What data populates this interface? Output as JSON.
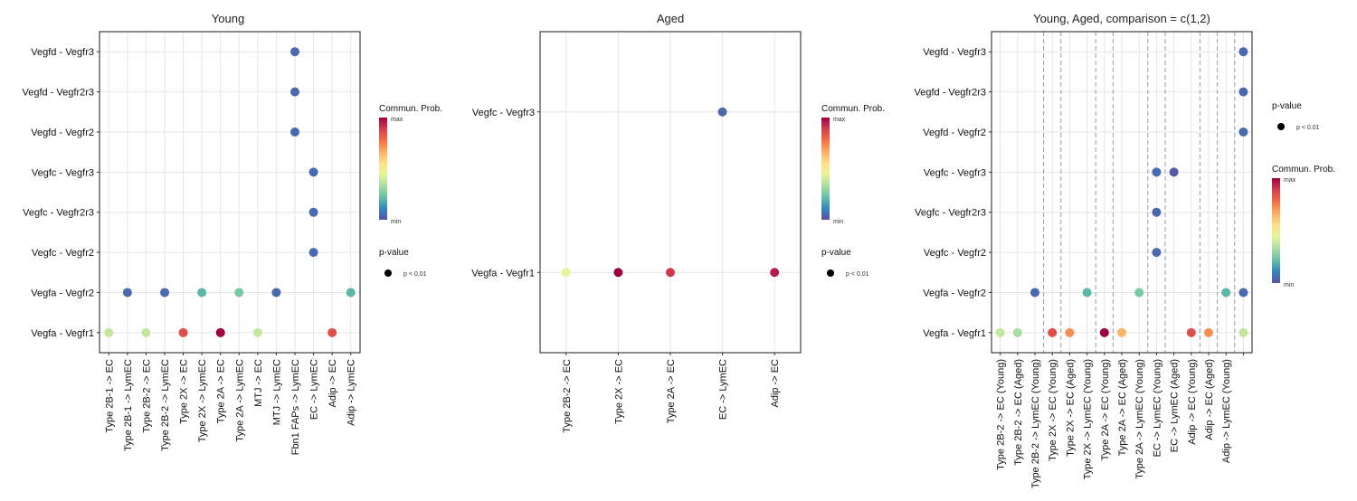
{
  "chart_data": [
    {
      "type": "scatter",
      "title": "Young",
      "x_categories": [
        "Type 2B-1 -> EC",
        "Type 2B-1 -> LymEC",
        "Type 2B-2 -> EC",
        "Type 2B-2 -> LymEC",
        "Type 2X -> EC",
        "Type 2X -> LymEC",
        "Type 2A -> EC",
        "Type 2A -> LymEC",
        "MTJ -> EC",
        "MTJ -> LymEC",
        "Fbn1 FAPs -> LymEC",
        "EC -> LymEC",
        "Adip -> EC",
        "Adip -> LymEC"
      ],
      "y_categories": [
        "Vegfa  - Vegfr1",
        "Vegfa  - Vegfr2",
        "Vegfc  - Vegfr2",
        "Vegfc  - Vegfr2r3",
        "Vegfc  - Vegfr3",
        "Vegfd  - Vegfr2",
        "Vegfd  - Vegfr2r3",
        "Vegfd  - Vegfr3"
      ],
      "points": [
        {
          "x": "Type 2B-1 -> EC",
          "y": "Vegfa  - Vegfr1",
          "prob": 0.38
        },
        {
          "x": "Type 2B-2 -> EC",
          "y": "Vegfa  - Vegfr1",
          "prob": 0.38
        },
        {
          "x": "Type 2X -> EC",
          "y": "Vegfa  - Vegfr1",
          "prob": 0.85
        },
        {
          "x": "Type 2A -> EC",
          "y": "Vegfa  - Vegfr1",
          "prob": 1.0
        },
        {
          "x": "MTJ -> EC",
          "y": "Vegfa  - Vegfr1",
          "prob": 0.38
        },
        {
          "x": "Adip -> EC",
          "y": "Vegfa  - Vegfr1",
          "prob": 0.85
        },
        {
          "x": "Type 2B-1 -> LymEC",
          "y": "Vegfa  - Vegfr2",
          "prob": 0.05
        },
        {
          "x": "Type 2B-2 -> LymEC",
          "y": "Vegfa  - Vegfr2",
          "prob": 0.05
        },
        {
          "x": "Type 2X -> LymEC",
          "y": "Vegfa  - Vegfr2",
          "prob": 0.2
        },
        {
          "x": "Type 2A -> LymEC",
          "y": "Vegfa  - Vegfr2",
          "prob": 0.25
        },
        {
          "x": "MTJ -> LymEC",
          "y": "Vegfa  - Vegfr2",
          "prob": 0.05
        },
        {
          "x": "Adip -> LymEC",
          "y": "Vegfa  - Vegfr2",
          "prob": 0.2
        },
        {
          "x": "EC -> LymEC",
          "y": "Vegfc  - Vegfr2",
          "prob": 0.05
        },
        {
          "x": "EC -> LymEC",
          "y": "Vegfc  - Vegfr2r3",
          "prob": 0.05
        },
        {
          "x": "EC -> LymEC",
          "y": "Vegfc  - Vegfr3",
          "prob": 0.05
        },
        {
          "x": "Fbn1 FAPs -> LymEC",
          "y": "Vegfd  - Vegfr2",
          "prob": 0.05
        },
        {
          "x": "Fbn1 FAPs -> LymEC",
          "y": "Vegfd  - Vegfr2r3",
          "prob": 0.05
        },
        {
          "x": "Fbn1 FAPs -> LymEC",
          "y": "Vegfd  - Vegfr3",
          "prob": 0.05
        }
      ],
      "legend": {
        "color_title": "Commun. Prob.",
        "color_max": "max",
        "color_min": "min",
        "size_title": "p-value",
        "size_label": "p < 0.01"
      }
    },
    {
      "type": "scatter",
      "title": "Aged",
      "x_categories": [
        "Type 2B-2 -> EC",
        "Type 2X -> EC",
        "Type 2A -> EC",
        "EC -> LymEC",
        "Adip -> EC"
      ],
      "y_categories": [
        "Vegfa  - Vegfr1",
        "Vegfc  - Vegfr3"
      ],
      "points": [
        {
          "x": "Type 2B-2 -> EC",
          "y": "Vegfa  - Vegfr1",
          "prob": 0.45
        },
        {
          "x": "Type 2X -> EC",
          "y": "Vegfa  - Vegfr1",
          "prob": 1.0
        },
        {
          "x": "Type 2A -> EC",
          "y": "Vegfa  - Vegfr1",
          "prob": 0.9
        },
        {
          "x": "Adip -> EC",
          "y": "Vegfa  - Vegfr1",
          "prob": 0.95
        },
        {
          "x": "EC -> LymEC",
          "y": "Vegfc  - Vegfr3",
          "prob": 0.05
        }
      ],
      "legend": {
        "color_title": "Commun. Prob.",
        "color_max": "max",
        "color_min": "min",
        "size_title": "p-value",
        "size_label": "p < 0.01"
      }
    },
    {
      "type": "scatter",
      "title": "Young, Aged, comparison = c(1,2)",
      "x_categories": [
        {
          "label": "Type 2B-2 -> EC (Young)",
          "group": "Young"
        },
        {
          "label": "Type 2B-2 -> EC (Aged)",
          "group": "Aged"
        },
        {
          "label": "Type 2B-2 -> LymEC (Young)",
          "group": "Young"
        },
        {
          "label": "Type 2X -> EC (Young)",
          "group": "Young"
        },
        {
          "label": "Type 2X -> EC (Aged)",
          "group": "Aged"
        },
        {
          "label": "Type 2X -> LymEC (Young)",
          "group": "Young"
        },
        {
          "label": "Type 2A -> EC (Young)",
          "group": "Young"
        },
        {
          "label": "Type 2A -> EC (Aged)",
          "group": "Aged"
        },
        {
          "label": "Type 2A -> LymEC (Young)",
          "group": "Young"
        },
        {
          "label": "EC -> LymEC (Young)",
          "group": "Young"
        },
        {
          "label": "EC -> LymEC (Aged)",
          "group": "Aged"
        },
        {
          "label": "Adip -> EC (Young)",
          "group": "Young"
        },
        {
          "label": "Adip -> EC (Aged)",
          "group": "Aged"
        },
        {
          "label": "Adip -> LymEC (Young)",
          "group": "Young"
        },
        {
          "label": "",
          "group": ""
        }
      ],
      "group_colors": {
        "Young": "#f8766d",
        "Aged": "#00bfc4"
      },
      "y_categories": [
        "Vegfa  - Vegfr1",
        "Vegfa  - Vegfr2",
        "Vegfc  - Vegfr2",
        "Vegfc  - Vegfr2r3",
        "Vegfc  - Vegfr3",
        "Vegfd  - Vegfr2",
        "Vegfd  - Vegfr2r3",
        "Vegfd  - Vegfr3"
      ],
      "separators_after": [
        2,
        3,
        5,
        6,
        8,
        9,
        11,
        12,
        13
      ],
      "points": [
        {
          "xi": 0,
          "y": "Vegfa  - Vegfr1",
          "prob": 0.38
        },
        {
          "xi": 1,
          "y": "Vegfa  - Vegfr1",
          "prob": 0.33
        },
        {
          "xi": 3,
          "y": "Vegfa  - Vegfr1",
          "prob": 0.85
        },
        {
          "xi": 4,
          "y": "Vegfa  - Vegfr1",
          "prob": 0.72
        },
        {
          "xi": 6,
          "y": "Vegfa  - Vegfr1",
          "prob": 1.0
        },
        {
          "xi": 7,
          "y": "Vegfa  - Vegfr1",
          "prob": 0.65
        },
        {
          "xi": 11,
          "y": "Vegfa  - Vegfr1",
          "prob": 0.85
        },
        {
          "xi": 12,
          "y": "Vegfa  - Vegfr1",
          "prob": 0.72
        },
        {
          "xi": 14,
          "y": "Vegfa  - Vegfr1",
          "prob": 0.38
        },
        {
          "xi": 2,
          "y": "Vegfa  - Vegfr2",
          "prob": 0.05
        },
        {
          "xi": 5,
          "y": "Vegfa  - Vegfr2",
          "prob": 0.2
        },
        {
          "xi": 8,
          "y": "Vegfa  - Vegfr2",
          "prob": 0.25
        },
        {
          "xi": 13,
          "y": "Vegfa  - Vegfr2",
          "prob": 0.2
        },
        {
          "xi": 14,
          "y": "Vegfa  - Vegfr2",
          "prob": 0.05
        },
        {
          "xi": 9,
          "y": "Vegfc  - Vegfr2",
          "prob": 0.05
        },
        {
          "xi": 9,
          "y": "Vegfc  - Vegfr2r3",
          "prob": 0.05
        },
        {
          "xi": 9,
          "y": "Vegfc  - Vegfr3",
          "prob": 0.05
        },
        {
          "xi": 10,
          "y": "Vegfc  - Vegfr3",
          "prob": 0.02
        },
        {
          "xi": 14,
          "y": "Vegfd  - Vegfr2",
          "prob": 0.05
        },
        {
          "xi": 14,
          "y": "Vegfd  - Vegfr2r3",
          "prob": 0.05
        },
        {
          "xi": 14,
          "y": "Vegfd  - Vegfr3",
          "prob": 0.05
        }
      ],
      "legend": {
        "size_title": "p-value",
        "size_label": "p < 0.01",
        "color_title": "Commun. Prob.",
        "color_max": "max",
        "color_min": "min"
      }
    }
  ],
  "colors": {
    "palette": [
      "#5e4fa2",
      "#3288bd",
      "#66c2a5",
      "#abdda4",
      "#e6f598",
      "#fee08b",
      "#fdae61",
      "#f46d43",
      "#d53e4f",
      "#9e0142"
    ],
    "grid": "#e6e6e6",
    "separator": "#9a9aa6"
  }
}
